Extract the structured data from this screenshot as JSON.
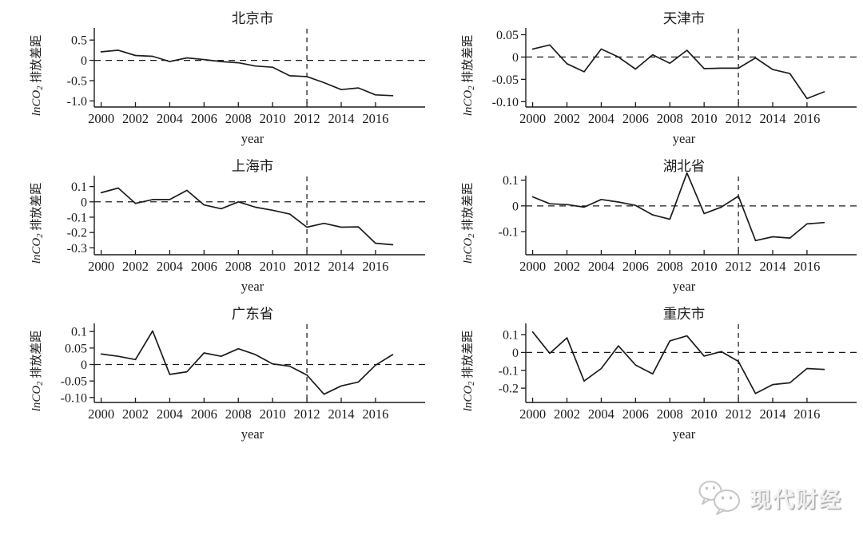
{
  "page": {
    "background": "#ffffff",
    "ink_color": "#1c1c1c"
  },
  "watermark": {
    "brand_label": "现代财经",
    "icon": "wechat-chat-bubbles-icon",
    "color": "#c6c6c6"
  },
  "chart_data": [
    {
      "type": "line",
      "title": "北京市",
      "xlabel": "year",
      "ylabel": {
        "math": "lnCO",
        "sub": "2",
        "text": "排放差距"
      },
      "x": [
        2000,
        2001,
        2002,
        2003,
        2004,
        2005,
        2006,
        2007,
        2008,
        2009,
        2010,
        2011,
        2012,
        2013,
        2014,
        2015,
        2016,
        2017
      ],
      "values": [
        0.21,
        0.25,
        0.12,
        0.1,
        -0.03,
        0.06,
        0.02,
        -0.03,
        -0.06,
        -0.14,
        -0.17,
        -0.38,
        -0.4,
        -0.55,
        -0.72,
        -0.68,
        -0.85,
        -0.87
      ],
      "yticks": [
        {
          "label": "0.5",
          "value": 0.5
        },
        {
          "label": "0",
          "value": 0
        },
        {
          "label": "-0.5",
          "value": -0.5
        },
        {
          "label": "-1.0",
          "value": -1.0
        }
      ],
      "ylim": [
        -1.15,
        0.72
      ],
      "xticks": [
        2000,
        2002,
        2004,
        2006,
        2008,
        2010,
        2012,
        2014,
        2016
      ],
      "xlim": [
        1999.6,
        2018.8
      ],
      "hline": 0,
      "vline": 2012,
      "grid": false,
      "line_color": "#1c1c1c"
    },
    {
      "type": "line",
      "title": "天津市",
      "xlabel": "year",
      "ylabel": {
        "math": "lnCO",
        "sub": "2",
        "text": "排放差距"
      },
      "x": [
        2000,
        2001,
        2002,
        2003,
        2004,
        2005,
        2006,
        2007,
        2008,
        2009,
        2010,
        2011,
        2012,
        2013,
        2014,
        2015,
        2016,
        2017
      ],
      "values": [
        0.018,
        0.027,
        -0.015,
        -0.033,
        0.018,
        0.0,
        -0.027,
        0.005,
        -0.014,
        0.015,
        -0.026,
        -0.025,
        -0.025,
        -0.002,
        -0.028,
        -0.037,
        -0.093,
        -0.078
      ],
      "yticks": [
        {
          "label": "0.05",
          "value": 0.05
        },
        {
          "label": "0",
          "value": 0
        },
        {
          "label": "-0.05",
          "value": -0.05
        },
        {
          "label": "-0.10",
          "value": -0.1
        }
      ],
      "ylim": [
        -0.112,
        0.058
      ],
      "xticks": [
        2000,
        2002,
        2004,
        2006,
        2008,
        2010,
        2012,
        2014,
        2016
      ],
      "xlim": [
        1999.6,
        2018.8
      ],
      "hline": 0,
      "vline": 2012,
      "grid": false,
      "line_color": "#1c1c1c"
    },
    {
      "type": "line",
      "title": "上海市",
      "xlabel": "year",
      "ylabel": {
        "math": "lnCO",
        "sub": "2",
        "text": "排放差距"
      },
      "x": [
        2000,
        2001,
        2002,
        2003,
        2004,
        2005,
        2006,
        2007,
        2008,
        2009,
        2010,
        2011,
        2012,
        2013,
        2014,
        2015,
        2016,
        2017
      ],
      "values": [
        0.06,
        0.09,
        -0.01,
        0.015,
        0.015,
        0.075,
        -0.02,
        -0.045,
        0.0,
        -0.035,
        -0.055,
        -0.08,
        -0.165,
        -0.14,
        -0.165,
        -0.163,
        -0.27,
        -0.28
      ],
      "yticks": [
        {
          "label": "0.1",
          "value": 0.1
        },
        {
          "label": "0",
          "value": 0
        },
        {
          "label": "-0.1",
          "value": -0.1
        },
        {
          "label": "-0.2",
          "value": -0.2
        },
        {
          "label": "-0.3",
          "value": -0.3
        }
      ],
      "ylim": [
        -0.345,
        0.15
      ],
      "xticks": [
        2000,
        2002,
        2004,
        2006,
        2008,
        2010,
        2012,
        2014,
        2016
      ],
      "xlim": [
        1999.6,
        2018.8
      ],
      "hline": 0,
      "vline": 2012,
      "grid": false,
      "line_color": "#1c1c1c"
    },
    {
      "type": "line",
      "title": "湖北省",
      "xlabel": "year",
      "ylabel": {
        "math": "lnCO",
        "sub": "2",
        "text": "排放差距"
      },
      "x": [
        2000,
        2001,
        2002,
        2003,
        2004,
        2005,
        2006,
        2007,
        2008,
        2009,
        2010,
        2011,
        2012,
        2013,
        2014,
        2015,
        2016,
        2017
      ],
      "values": [
        0.035,
        0.008,
        0.005,
        -0.005,
        0.025,
        0.015,
        0.002,
        -0.035,
        -0.052,
        0.128,
        -0.03,
        -0.005,
        0.038,
        -0.135,
        -0.12,
        -0.125,
        -0.07,
        -0.065
      ],
      "yticks": [
        {
          "label": "0.1",
          "value": 0.1
        },
        {
          "label": "0",
          "value": 0
        },
        {
          "label": "-0.1",
          "value": -0.1
        }
      ],
      "ylim": [
        -0.19,
        0.105
      ],
      "xticks": [
        2000,
        2002,
        2004,
        2006,
        2008,
        2010,
        2012,
        2014,
        2016
      ],
      "xlim": [
        1999.6,
        2018.8
      ],
      "hline": 0,
      "vline": 2012,
      "grid": false,
      "line_color": "#1c1c1c"
    },
    {
      "type": "line",
      "title": "广东省",
      "xlabel": "year",
      "ylabel": {
        "math": "lnCO",
        "sub": "2",
        "text": "排放差距"
      },
      "x": [
        2000,
        2001,
        2002,
        2003,
        2004,
        2005,
        2006,
        2007,
        2008,
        2009,
        2010,
        2011,
        2012,
        2013,
        2014,
        2015,
        2016,
        2017
      ],
      "values": [
        0.032,
        0.025,
        0.015,
        0.102,
        -0.03,
        -0.022,
        0.035,
        0.025,
        0.048,
        0.03,
        0.002,
        -0.005,
        -0.032,
        -0.09,
        -0.065,
        -0.053,
        -0.002,
        0.03
      ],
      "yticks": [
        {
          "label": "0.1",
          "value": 0.1
        },
        {
          "label": "0.05",
          "value": 0.05
        },
        {
          "label": "0",
          "value": 0
        },
        {
          "label": "-0.05",
          "value": -0.05
        },
        {
          "label": "-0.10",
          "value": -0.1
        }
      ],
      "ylim": [
        -0.115,
        0.115
      ],
      "xticks": [
        2000,
        2002,
        2004,
        2006,
        2008,
        2010,
        2012,
        2014,
        2016
      ],
      "xlim": [
        1999.6,
        2018.8
      ],
      "hline": 0,
      "vline": 2012,
      "grid": false,
      "line_color": "#1c1c1c"
    },
    {
      "type": "line",
      "title": "重庆市",
      "xlabel": "year",
      "ylabel": {
        "math": "lnCO",
        "sub": "2",
        "text": "排放差距"
      },
      "x": [
        2000,
        2001,
        2002,
        2003,
        2004,
        2005,
        2006,
        2007,
        2008,
        2009,
        2010,
        2011,
        2012,
        2013,
        2014,
        2015,
        2016,
        2017
      ],
      "values": [
        0.115,
        -0.005,
        0.082,
        -0.16,
        -0.09,
        0.037,
        -0.07,
        -0.12,
        0.065,
        0.093,
        -0.02,
        0.005,
        -0.05,
        -0.23,
        -0.18,
        -0.17,
        -0.09,
        -0.095
      ],
      "yticks": [
        {
          "label": "0.1",
          "value": 0.1
        },
        {
          "label": "0",
          "value": 0
        },
        {
          "label": "-0.1",
          "value": -0.1
        },
        {
          "label": "-0.2",
          "value": -0.2
        }
      ],
      "ylim": [
        -0.28,
        0.145
      ],
      "xticks": [
        2000,
        2002,
        2004,
        2006,
        2008,
        2010,
        2012,
        2014,
        2016
      ],
      "xlim": [
        1999.6,
        2018.8
      ],
      "hline": 0,
      "vline": 2012,
      "grid": false,
      "line_color": "#1c1c1c"
    }
  ]
}
